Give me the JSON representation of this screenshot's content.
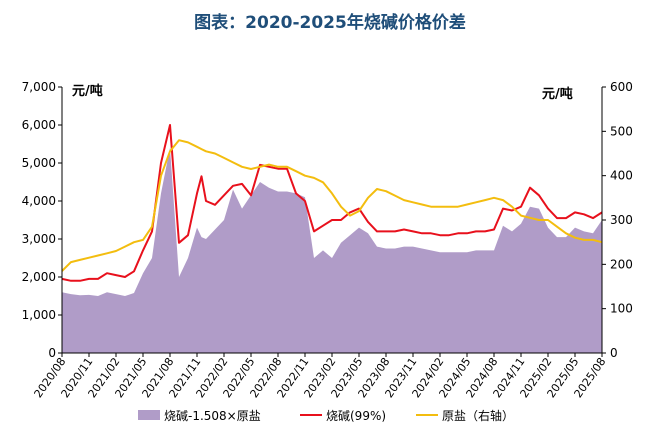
{
  "chart_data": {
    "type": "line",
    "title": "图表：2020-2025年烧碱价格价差",
    "ylabel_left": "元/吨",
    "ylabel_right": "元/吨",
    "ylim_left": [
      0,
      7000
    ],
    "ylim_right": [
      0,
      600
    ],
    "yticks_left": [
      "0",
      "1,000",
      "2,000",
      "3,000",
      "4,000",
      "5,000",
      "6,000",
      "7,000"
    ],
    "yticks_right": [
      "0",
      "100",
      "200",
      "300",
      "400",
      "500",
      "600"
    ],
    "xticks": [
      "2020/08",
      "2020/11",
      "2021/02",
      "2021/05",
      "2021/08",
      "2021/11",
      "2022/02",
      "2022/05",
      "2022/08",
      "2022/11",
      "2023/02",
      "2023/05",
      "2023/08",
      "2023/11",
      "2024/02",
      "2024/05",
      "2024/08",
      "2024/11",
      "2025/02",
      "2025/05",
      "2025/08"
    ],
    "grid": false,
    "legend_position": "bottom",
    "colors": {
      "spread": "#b09cc8",
      "caustic": "#e8101c",
      "salt": "#f3bd0f",
      "title": "#1f4e79"
    },
    "x_months": [
      0,
      1,
      2,
      3,
      4,
      5,
      6,
      7,
      8,
      9,
      10,
      11,
      12,
      13,
      14,
      15,
      15.5,
      16,
      17,
      18,
      19,
      20,
      21,
      22,
      23,
      24,
      25,
      26,
      27,
      28,
      29,
      30,
      31,
      32,
      33,
      34,
      35,
      36,
      37,
      38,
      39,
      40,
      41,
      42,
      43,
      44,
      45,
      46,
      47,
      48,
      49,
      50,
      51,
      52,
      53,
      54,
      55,
      56,
      57,
      58,
      59,
      60
    ],
    "series": [
      {
        "name": "烧碱-1.508×原盐",
        "axis": "left",
        "kind": "area",
        "values": [
          1600,
          1550,
          1520,
          1530,
          1500,
          1600,
          1550,
          1500,
          1580,
          2100,
          2500,
          4200,
          5400,
          2000,
          2500,
          3300,
          3050,
          3000,
          3250,
          3500,
          4300,
          3800,
          4150,
          4500,
          4350,
          4250,
          4250,
          4200,
          4100,
          2500,
          2700,
          2500,
          2900,
          3100,
          3300,
          3150,
          2800,
          2750,
          2750,
          2800,
          2800,
          2750,
          2700,
          2650,
          2650,
          2650,
          2650,
          2700,
          2700,
          2700,
          3350,
          3200,
          3400,
          3850,
          3800,
          3300,
          3050,
          3050,
          3300,
          3200,
          3150,
          3500
        ]
      },
      {
        "name": "烧碱(99%)",
        "axis": "left",
        "kind": "line",
        "values": [
          1950,
          1900,
          1900,
          1950,
          1950,
          2100,
          2050,
          2000,
          2150,
          2700,
          3200,
          5000,
          6000,
          2900,
          3100,
          4200,
          4650,
          4000,
          3900,
          4150,
          4400,
          4450,
          4150,
          4950,
          4900,
          4850,
          4850,
          4200,
          4000,
          3200,
          3350,
          3500,
          3500,
          3700,
          3800,
          3450,
          3200,
          3200,
          3200,
          3250,
          3200,
          3150,
          3150,
          3100,
          3100,
          3150,
          3150,
          3200,
          3200,
          3250,
          3800,
          3750,
          3850,
          4350,
          4150,
          3800,
          3550,
          3550,
          3700,
          3650,
          3550,
          3700
        ]
      },
      {
        "name": "原盐（右轴）",
        "axis": "right",
        "kind": "line",
        "values": [
          185,
          205,
          210,
          215,
          220,
          225,
          230,
          240,
          250,
          255,
          285,
          400,
          455,
          480,
          475,
          465,
          460,
          455,
          450,
          440,
          430,
          420,
          415,
          420,
          425,
          420,
          420,
          410,
          400,
          395,
          385,
          360,
          330,
          310,
          320,
          350,
          370,
          365,
          355,
          345,
          340,
          335,
          330,
          330,
          330,
          330,
          335,
          340,
          345,
          350,
          345,
          330,
          310,
          305,
          300,
          300,
          285,
          270,
          260,
          255,
          255,
          250
        ]
      }
    ]
  }
}
